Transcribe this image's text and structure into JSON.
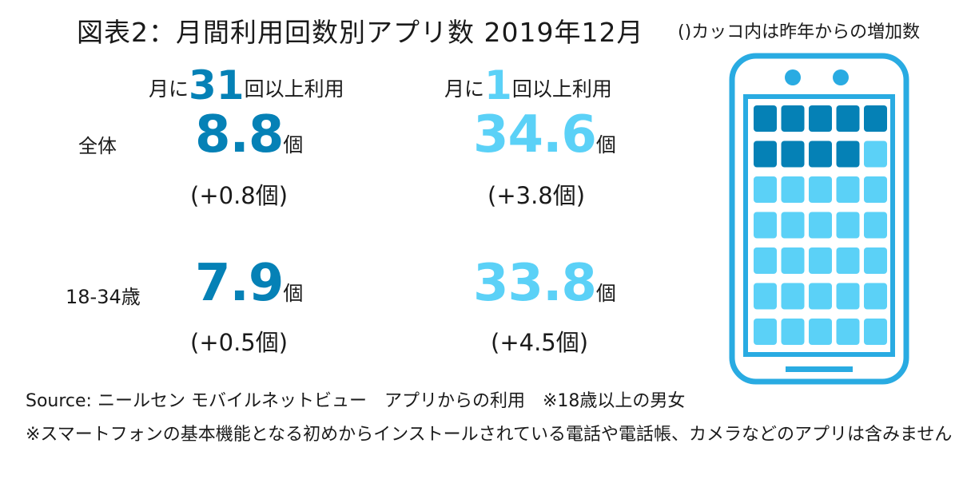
{
  "title": "図表2：月間利用回数別アプリ数 2019年12月",
  "note": "()カッコ内は昨年からの増加数",
  "colors": {
    "dark": "#0581b6",
    "light": "#5bd1f7",
    "outline": "#29abe2"
  },
  "columns": [
    {
      "prefix": "月に",
      "number": "31",
      "suffix": "回以上利用"
    },
    {
      "prefix": "月に",
      "number": "1",
      "suffix": "回以上利用"
    }
  ],
  "rows": [
    {
      "label": "全体",
      "cells": [
        {
          "value": "8.8",
          "unit": "個",
          "delta": "(+0.8個)"
        },
        {
          "value": "34.6",
          "unit": "個",
          "delta": "(+3.8個)"
        }
      ]
    },
    {
      "label": "18-34歳",
      "cells": [
        {
          "value": "7.9",
          "unit": "個",
          "delta": "(+0.5個)"
        },
        {
          "value": "33.8",
          "unit": "個",
          "delta": "(+4.5個)"
        }
      ]
    }
  ],
  "source": "Source: ニールセン モバイルネットビュー　アプリからの利用　※18歳以上の男女",
  "footnote": "※スマートフォンの基本機能となる初めからインストールされている電話や電話帳、カメラなどのアプリは含みません",
  "chart_data": {
    "type": "table",
    "title": "図表2：月間利用回数別アプリ数 2019年12月",
    "columns": [
      "月に31回以上利用",
      "月に1回以上利用"
    ],
    "rows": [
      "全体",
      "18-34歳"
    ],
    "unit": "個",
    "values": [
      [
        8.8,
        34.6
      ],
      [
        7.9,
        33.8
      ]
    ],
    "yoy_change": [
      [
        0.8,
        3.8
      ],
      [
        0.5,
        4.5
      ]
    ],
    "pictogram": {
      "columns": 5,
      "rows": 7,
      "dark_icons": 9,
      "light_icons": 26
    }
  }
}
